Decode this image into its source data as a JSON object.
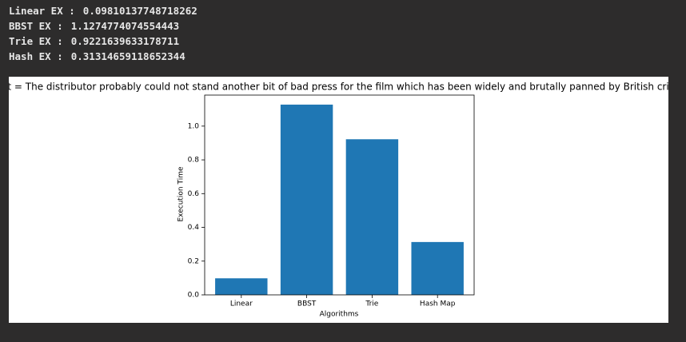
{
  "output_lines": [
    {
      "label": "Linear EX :",
      "value": "0.09810137748718262"
    },
    {
      "label": "BBST EX :",
      "value": "1.1274774074554443"
    },
    {
      "label": "Trie EX :",
      "value": "0.9221639633178711"
    },
    {
      "label": "Hash EX :",
      "value": "0.31314659118652344"
    }
  ],
  "chart_data": {
    "type": "bar",
    "title": "text = The distributor probably could not stand another bit of bad press for the film which has been widely and brutally panned by British critics",
    "x_label": "Algorithms",
    "y_label": "Execution Time",
    "categories": [
      "Linear",
      "BBST",
      "Trie",
      "Hash Map"
    ],
    "values": [
      0.09810137748718262,
      1.1274774074554443,
      0.9221639633178711,
      0.31314659118652344
    ],
    "color": "#1f77b4",
    "ylim": [
      0,
      1.1839
    ],
    "yticks": [
      {
        "value": 0,
        "label": "0.0"
      },
      0.2,
      0.4,
      0.6,
      0.8,
      {
        "value": 1,
        "label": "1.0"
      }
    ],
    "grid": false
  }
}
